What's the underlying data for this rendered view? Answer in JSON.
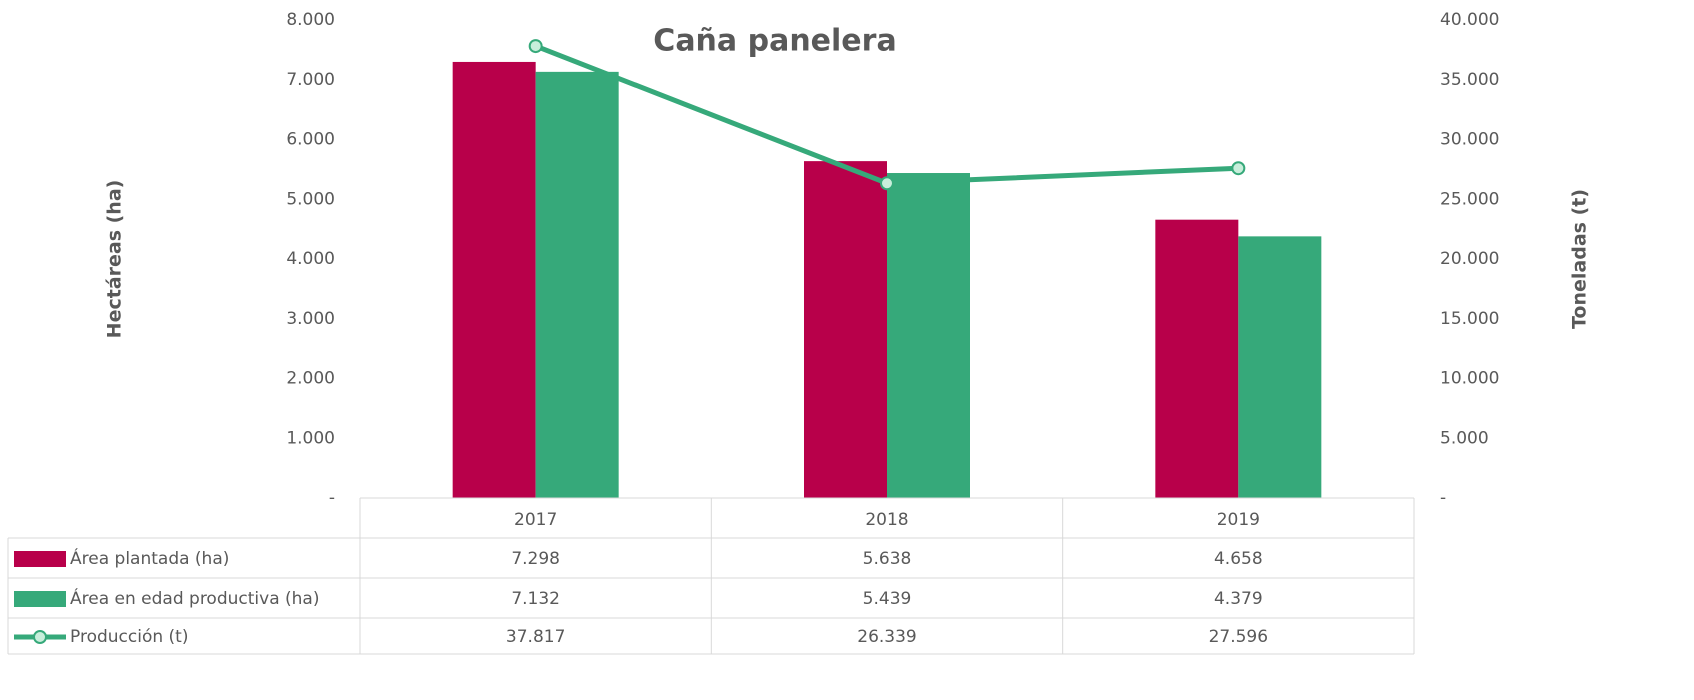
{
  "chart_data": {
    "type": "bar",
    "title": "Caña panelera",
    "ylabel": "Hectáreas (ha)",
    "y2label": "Toneladas (t)",
    "categories": [
      "2017",
      "2018",
      "2019"
    ],
    "series": [
      {
        "name": "Área plantada (ha)",
        "type": "bar",
        "color": "#b8004a",
        "values": [
          7298,
          5638,
          4658
        ],
        "value_labels": [
          "7.298",
          "5.638",
          "4.658"
        ]
      },
      {
        "name": "Área en edad productiva (ha)",
        "type": "bar",
        "color": "#36a97a",
        "values": [
          7132,
          5439,
          4379
        ],
        "value_labels": [
          "7.132",
          "5.439",
          "4.379"
        ]
      },
      {
        "name": "Producción (t)",
        "type": "line",
        "axis": "y2",
        "color": "#36a97a",
        "marker_fill": "#c8eedb",
        "values": [
          37817,
          26339,
          27596
        ],
        "value_labels": [
          "37.817",
          "26.339",
          "27.596"
        ]
      }
    ],
    "ylim": [
      0,
      8000
    ],
    "yticks": [
      {
        "value": 0,
        "label": "-"
      },
      {
        "value": 1000,
        "label": "1.000"
      },
      {
        "value": 2000,
        "label": "2.000"
      },
      {
        "value": 3000,
        "label": "3.000"
      },
      {
        "value": 4000,
        "label": "4.000"
      },
      {
        "value": 5000,
        "label": "5.000"
      },
      {
        "value": 6000,
        "label": "6.000"
      },
      {
        "value": 7000,
        "label": "7.000"
      },
      {
        "value": 8000,
        "label": "8.000"
      }
    ],
    "y2lim": [
      0,
      40000
    ],
    "y2ticks": [
      {
        "value": 0,
        "label": "-"
      },
      {
        "value": 5000,
        "label": "5.000"
      },
      {
        "value": 10000,
        "label": "10.000"
      },
      {
        "value": 15000,
        "label": "15.000"
      },
      {
        "value": 20000,
        "label": "20.000"
      },
      {
        "value": 25000,
        "label": "25.000"
      },
      {
        "value": 30000,
        "label": "30.000"
      },
      {
        "value": 35000,
        "label": "35.000"
      },
      {
        "value": 40000,
        "label": "40.000"
      }
    ],
    "grid": false,
    "data_table": true
  }
}
